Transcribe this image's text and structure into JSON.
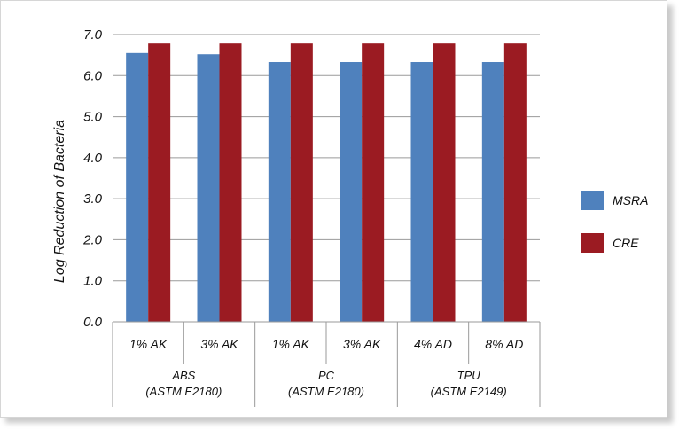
{
  "chart_data": {
    "type": "bar",
    "title": "",
    "xlabel": "",
    "ylabel": "Log Reduction of Bacteria",
    "ylim": [
      0,
      7
    ],
    "yticks": [
      "0.0",
      "1.0",
      "2.0",
      "3.0",
      "4.0",
      "5.0",
      "6.0",
      "7.0"
    ],
    "categories": [
      "1% AK",
      "3% AK",
      "1% AK",
      "3% AK",
      "4% AD",
      "8% AD"
    ],
    "groups": [
      {
        "line1": "ABS",
        "line2": "(ASTM E2180)",
        "span": 2
      },
      {
        "line1": "PC",
        "line2": "(ASTM E2180)",
        "span": 2
      },
      {
        "line1": "TPU",
        "line2": "(ASTM E2149)",
        "span": 2
      }
    ],
    "series": [
      {
        "name": "MSRA",
        "color": "#4f81bd",
        "values": [
          6.55,
          6.52,
          6.33,
          6.33,
          6.33,
          6.33
        ]
      },
      {
        "name": "CRE",
        "color": "#9b1b22",
        "values": [
          6.78,
          6.78,
          6.78,
          6.78,
          6.78,
          6.78
        ]
      }
    ],
    "grid": true,
    "legend": "right"
  }
}
